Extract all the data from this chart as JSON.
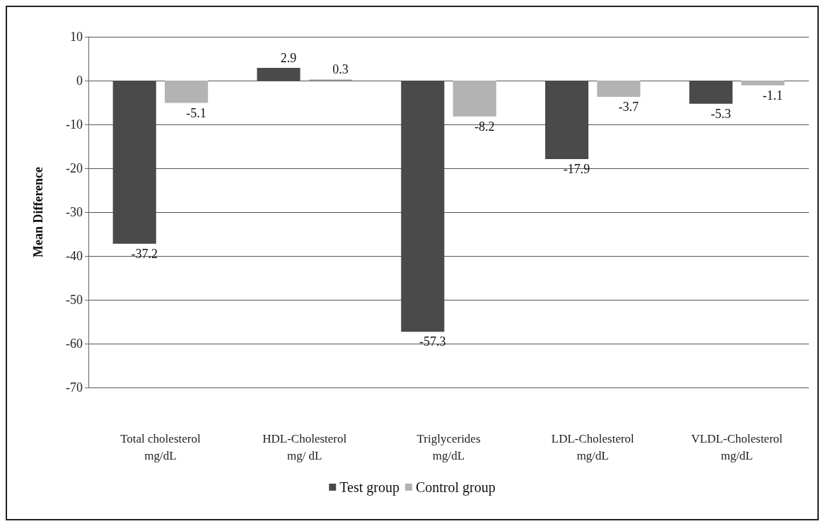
{
  "chart_data": {
    "type": "bar",
    "ylabel": "Mean Difference",
    "categories": [
      "Total cholesterol\nmg/dL",
      "HDL-Cholesterol\nmg/ dL",
      "Triglycerides\nmg/dL",
      "LDL-Cholesterol\nmg/dL",
      "VLDL-Cholesterol\nmg/dL"
    ],
    "series": [
      {
        "name": "Test group",
        "color": "#4a4a4a",
        "values": [
          -37.2,
          2.9,
          -57.3,
          -17.9,
          -5.3
        ]
      },
      {
        "name": "Control group",
        "color": "#b3b3b3",
        "values": [
          -5.1,
          0.3,
          -8.2,
          -3.7,
          -1.1
        ]
      }
    ],
    "ylim": [
      -70,
      10
    ],
    "yticks": [
      -70,
      -60,
      -50,
      -40,
      -30,
      -20,
      -10,
      0,
      10
    ],
    "grid": "y",
    "legend": "bottom",
    "data_labels": true
  }
}
